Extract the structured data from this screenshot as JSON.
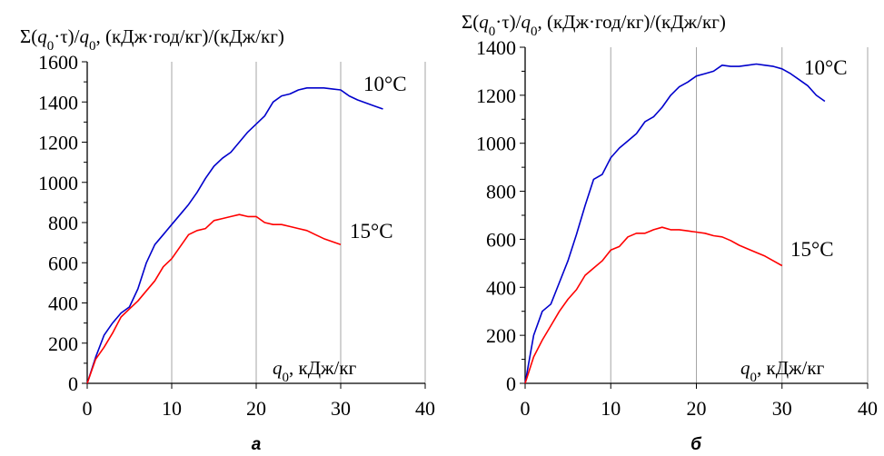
{
  "chart_data": [
    {
      "type": "line",
      "panel_label": "а",
      "ylabel_parts": [
        "Σ(",
        "q",
        "0",
        "·τ)/",
        "q",
        "0",
        ", (кДж·год/кг)/(кДж/кг)"
      ],
      "xlabel_parts": [
        "q",
        "0",
        ", кДж/кг"
      ],
      "xlim": [
        0,
        40
      ],
      "ylim": [
        0,
        1600
      ],
      "xticks": [
        0,
        10,
        20,
        30,
        40
      ],
      "yticks": [
        0,
        200,
        400,
        600,
        800,
        1000,
        1200,
        1400,
        1600
      ],
      "grid": true,
      "series": [
        {
          "name": "10°C",
          "color": "#0000cc",
          "x": [
            0,
            1,
            2,
            3,
            4,
            5,
            6,
            7,
            8,
            9,
            10,
            11,
            12,
            13,
            14,
            15,
            16,
            17,
            18,
            19,
            20,
            21,
            22,
            23,
            24,
            25,
            26,
            27,
            28,
            29,
            30,
            31,
            32,
            33,
            34,
            35
          ],
          "y": [
            0,
            130,
            240,
            300,
            350,
            380,
            470,
            600,
            690,
            740,
            790,
            840,
            890,
            950,
            1020,
            1080,
            1120,
            1150,
            1200,
            1250,
            1290,
            1330,
            1400,
            1430,
            1440,
            1460,
            1470,
            1470,
            1470,
            1465,
            1460,
            1430,
            1410,
            1395,
            1380,
            1365
          ]
        },
        {
          "name": "15°C",
          "color": "#ff0000",
          "x": [
            0,
            1,
            2,
            3,
            4,
            5,
            6,
            7,
            8,
            9,
            10,
            11,
            12,
            13,
            14,
            15,
            16,
            17,
            18,
            19,
            20,
            21,
            22,
            23,
            24,
            25,
            26,
            27,
            28,
            29,
            30
          ],
          "y": [
            0,
            120,
            180,
            250,
            330,
            370,
            410,
            460,
            510,
            580,
            620,
            680,
            740,
            760,
            770,
            810,
            820,
            830,
            840,
            830,
            830,
            800,
            790,
            790,
            780,
            770,
            760,
            740,
            720,
            705,
            690
          ]
        }
      ]
    },
    {
      "type": "line",
      "panel_label": "б",
      "ylabel_parts": [
        "Σ(",
        "q",
        "0",
        "·τ)/",
        "q",
        "0",
        ", (кДж·год/кг)/(кДж/кг)"
      ],
      "xlabel_parts": [
        "q",
        "0",
        ", кДж/кг"
      ],
      "xlim": [
        0,
        40
      ],
      "ylim": [
        0,
        1400
      ],
      "xticks": [
        0,
        10,
        20,
        30,
        40
      ],
      "yticks": [
        0,
        200,
        400,
        600,
        800,
        1000,
        1200,
        1400
      ],
      "grid": true,
      "series": [
        {
          "name": "10°C",
          "color": "#0000cc",
          "x": [
            0,
            1,
            2,
            3,
            4,
            5,
            6,
            7,
            8,
            9,
            10,
            11,
            12,
            13,
            14,
            15,
            16,
            17,
            18,
            19,
            20,
            21,
            22,
            23,
            24,
            25,
            26,
            27,
            28,
            29,
            30,
            31,
            32,
            33,
            34,
            35
          ],
          "y": [
            0,
            200,
            300,
            330,
            420,
            510,
            620,
            740,
            850,
            870,
            940,
            980,
            1010,
            1040,
            1090,
            1110,
            1150,
            1200,
            1235,
            1255,
            1280,
            1290,
            1300,
            1325,
            1320,
            1320,
            1325,
            1330,
            1325,
            1320,
            1310,
            1290,
            1265,
            1240,
            1200,
            1175
          ]
        },
        {
          "name": "15°C",
          "color": "#ff0000",
          "x": [
            0,
            1,
            2,
            3,
            4,
            5,
            6,
            7,
            8,
            9,
            10,
            11,
            12,
            13,
            14,
            15,
            16,
            17,
            18,
            19,
            20,
            21,
            22,
            23,
            24,
            25,
            26,
            27,
            28,
            29,
            30
          ],
          "y": [
            0,
            110,
            180,
            240,
            300,
            350,
            390,
            450,
            480,
            510,
            555,
            570,
            610,
            625,
            625,
            640,
            650,
            640,
            640,
            635,
            630,
            625,
            615,
            610,
            595,
            575,
            560,
            545,
            530,
            510,
            490
          ]
        }
      ]
    }
  ]
}
